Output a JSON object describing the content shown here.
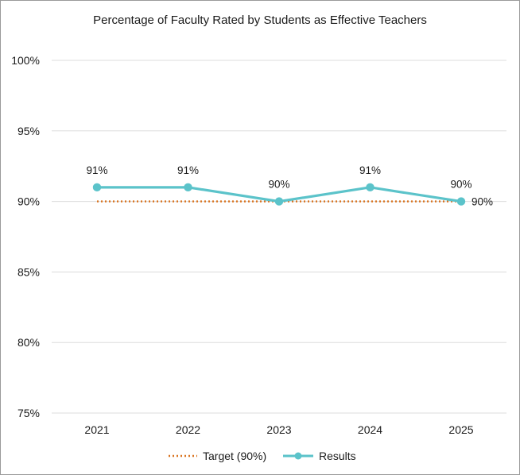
{
  "chart_data": {
    "type": "line",
    "title": "Percentage of Faculty Rated by Students as Effective Teachers",
    "categories": [
      "2021",
      "2022",
      "2023",
      "2024",
      "2025"
    ],
    "series": [
      {
        "name": "Target (90%)",
        "values": [
          90,
          90,
          90,
          90,
          90
        ],
        "style": "dotted",
        "color": "#D9731F",
        "end_label": "90%"
      },
      {
        "name": "Results",
        "values": [
          91,
          91,
          90,
          91,
          90
        ],
        "style": "solid-markers",
        "color": "#5BC3CA",
        "data_labels": [
          "91%",
          "91%",
          "90%",
          "91%",
          "90%"
        ]
      }
    ],
    "y_ticks": [
      "75%",
      "80%",
      "85%",
      "90%",
      "95%",
      "100%"
    ],
    "y_tick_values": [
      75,
      80,
      85,
      90,
      95,
      100
    ],
    "ylim": [
      75,
      100
    ],
    "xlabel": "",
    "ylabel": "",
    "grid": true,
    "legend_position": "bottom"
  }
}
